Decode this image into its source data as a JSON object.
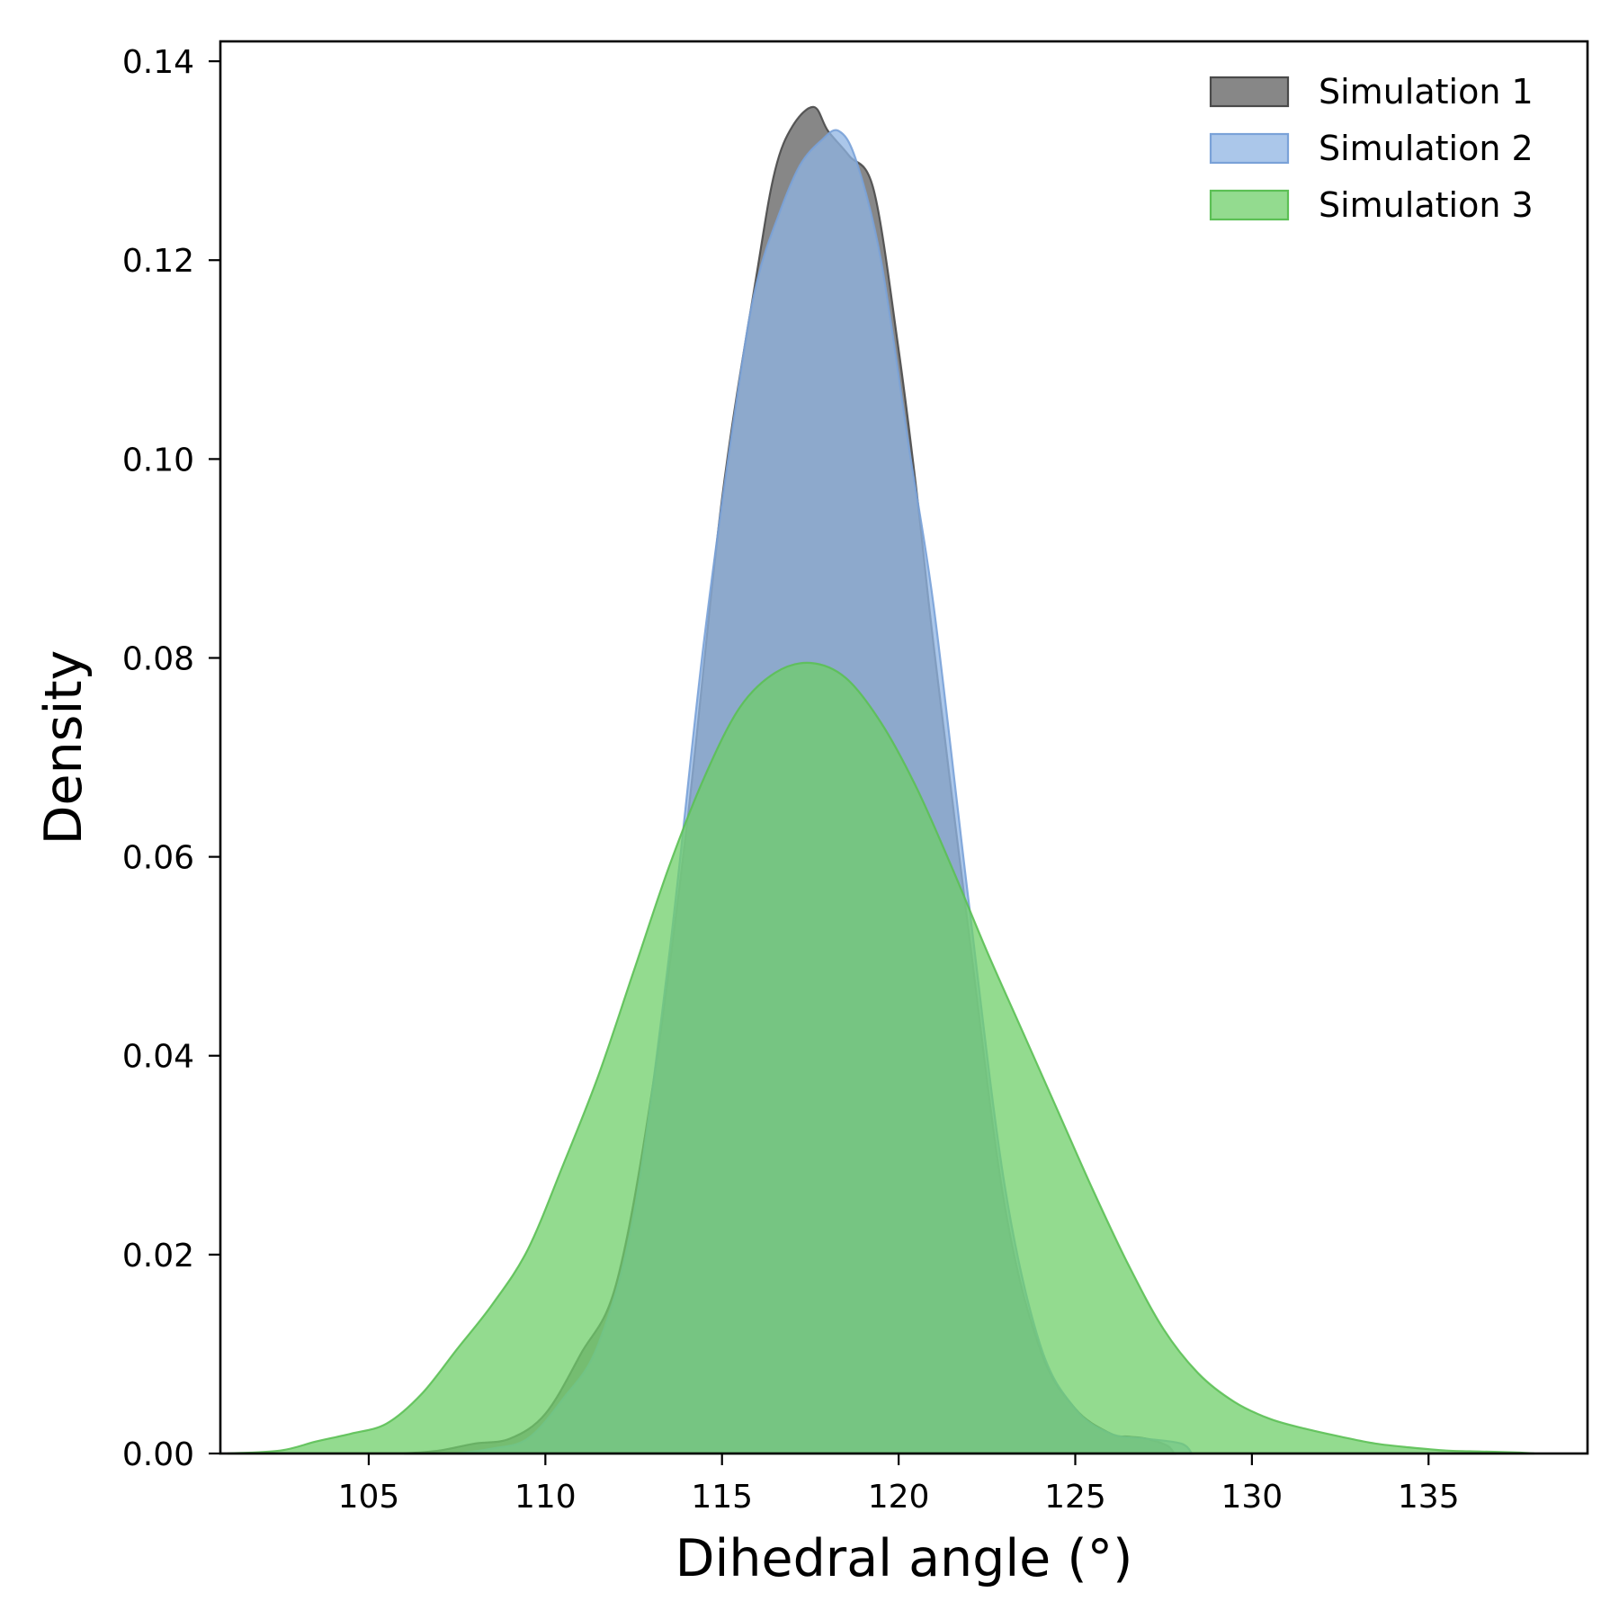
{
  "chart_data": {
    "type": "area",
    "title": "",
    "xlabel": "Dihedral angle (°)",
    "ylabel": "Density",
    "xlim": [
      100.8,
      139.5
    ],
    "ylim": [
      0,
      0.142
    ],
    "xticks": [
      105,
      110,
      115,
      120,
      125,
      130,
      135
    ],
    "xtick_labels": [
      "105",
      "110",
      "115",
      "120",
      "125",
      "130",
      "135"
    ],
    "yticks": [
      0,
      0.02,
      0.04,
      0.06,
      0.08,
      0.1,
      0.12,
      0.14
    ],
    "ytick_labels": [
      "0.00",
      "0.02",
      "0.04",
      "0.06",
      "0.08",
      "0.10",
      "0.12",
      "0.14"
    ],
    "grid": false,
    "legend_position": "top-right",
    "series": [
      {
        "name": "Simulation 1",
        "fill": "#595959",
        "edge": "#4a4a4a",
        "opacity": 0.72,
        "x": [
          106.0,
          107.0,
          108.0,
          109.0,
          110.0,
          111.0,
          112.0,
          113.0,
          114.0,
          115.0,
          116.0,
          116.5,
          117.0,
          117.6,
          118.0,
          118.6,
          119.3,
          120.0,
          120.5,
          121.0,
          122.0,
          123.0,
          124.0,
          125.0,
          126.0,
          126.5,
          127.0,
          127.6,
          127.8
        ],
        "y": [
          0.0,
          0.0003,
          0.001,
          0.0015,
          0.004,
          0.01,
          0.017,
          0.036,
          0.063,
          0.096,
          0.119,
          0.129,
          0.1335,
          0.1354,
          0.133,
          0.1305,
          0.127,
          0.111,
          0.097,
          0.081,
          0.052,
          0.025,
          0.0105,
          0.0045,
          0.002,
          0.0017,
          0.0015,
          0.0008,
          0.0
        ]
      },
      {
        "name": "Simulation 2",
        "fill": "#8fb4e3",
        "edge": "#7aa2d8",
        "opacity": 0.75,
        "x": [
          107.5,
          108.5,
          109.5,
          110.5,
          111.5,
          112.5,
          113.5,
          114.5,
          115.5,
          116.0,
          116.6,
          117.2,
          117.8,
          118.3,
          118.8,
          119.5,
          120.3,
          121.0,
          122.0,
          123.0,
          124.0,
          125.0,
          126.0,
          127.0,
          128.0,
          128.3
        ],
        "y": [
          0.0,
          0.0005,
          0.0015,
          0.0055,
          0.011,
          0.024,
          0.05,
          0.082,
          0.108,
          0.118,
          0.1245,
          0.1295,
          0.132,
          0.133,
          0.13,
          0.12,
          0.101,
          0.085,
          0.055,
          0.027,
          0.011,
          0.0045,
          0.002,
          0.0015,
          0.001,
          0.0
        ]
      },
      {
        "name": "Simulation 3",
        "fill": "#6fcf6a",
        "edge": "#5cc055",
        "opacity": 0.75,
        "x": [
          101.0,
          102.5,
          103.5,
          104.5,
          105.5,
          106.5,
          107.5,
          108.5,
          109.5,
          110.5,
          111.5,
          112.5,
          113.5,
          114.5,
          115.5,
          116.5,
          117.5,
          118.5,
          119.5,
          120.5,
          121.5,
          122.5,
          123.5,
          124.5,
          125.5,
          126.5,
          127.5,
          128.5,
          129.5,
          130.5,
          131.5,
          132.5,
          133.5,
          134.5,
          135.5,
          136.5,
          137.5,
          138.0
        ],
        "y": [
          0.0,
          0.0003,
          0.0012,
          0.002,
          0.003,
          0.006,
          0.0105,
          0.015,
          0.0205,
          0.029,
          0.038,
          0.0485,
          0.059,
          0.068,
          0.075,
          0.0785,
          0.0795,
          0.078,
          0.0735,
          0.067,
          0.059,
          0.0505,
          0.0425,
          0.0345,
          0.0265,
          0.019,
          0.0125,
          0.008,
          0.0052,
          0.0035,
          0.0025,
          0.0017,
          0.001,
          0.0006,
          0.0003,
          0.0002,
          0.0001,
          0.0
        ]
      }
    ]
  }
}
